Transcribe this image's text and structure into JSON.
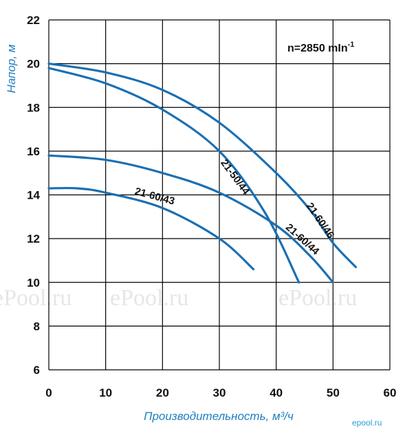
{
  "chart_data": {
    "type": "line",
    "xlabel": "Производительность, м³/ч",
    "ylabel": "Напор, м",
    "xlim": [
      0,
      60
    ],
    "ylim": [
      6,
      22
    ],
    "xticks": [
      0,
      10,
      20,
      30,
      40,
      50,
      60
    ],
    "yticks": [
      6,
      8,
      10,
      12,
      14,
      16,
      18,
      20,
      22
    ],
    "grid": true,
    "annotation": "n=2850 mIn",
    "annotation_sup": "-1",
    "series": [
      {
        "name": "21-60/46",
        "x": [
          0,
          10,
          20,
          30,
          40,
          46,
          50,
          54
        ],
        "y": [
          20.0,
          19.6,
          18.8,
          17.3,
          15.0,
          13.3,
          11.8,
          10.7
        ]
      },
      {
        "name": "21-50/44",
        "x": [
          0,
          10,
          20,
          30,
          38,
          44
        ],
        "y": [
          19.8,
          19.1,
          17.9,
          16.0,
          13.2,
          10.0
        ]
      },
      {
        "name": "21-60/44",
        "x": [
          0,
          10,
          20,
          30,
          40,
          46,
          50
        ],
        "y": [
          15.8,
          15.6,
          15.0,
          14.1,
          12.6,
          11.2,
          10.0
        ]
      },
      {
        "name": "21-60/43",
        "x": [
          0,
          5,
          10,
          20,
          30,
          36
        ],
        "y": [
          14.3,
          14.3,
          14.1,
          13.4,
          12.0,
          10.6
        ]
      }
    ]
  },
  "watermarks": [
    "ePool.ru",
    "ePool.ru",
    "ePool.ru"
  ],
  "brand_mark": "epool.ru",
  "colors": {
    "curve": "#1a6fb3",
    "axis_title": "#1f7fc1",
    "grid": "#000000"
  }
}
